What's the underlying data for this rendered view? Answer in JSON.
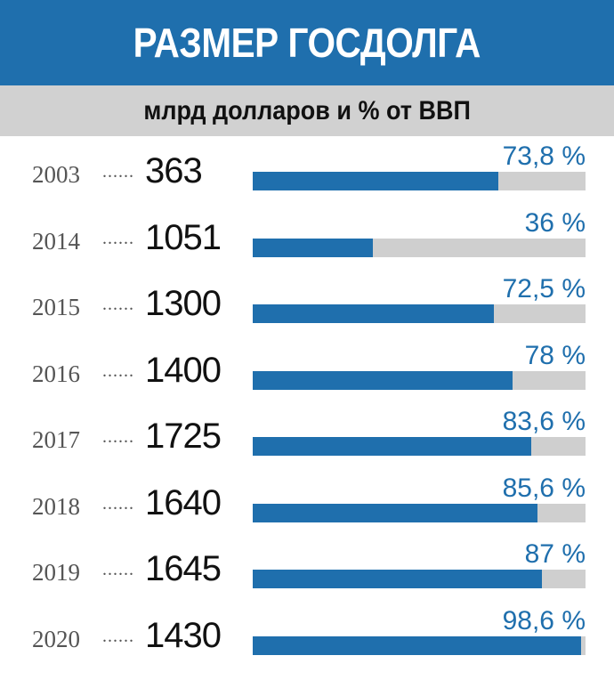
{
  "header": {
    "title": "РАЗМЕР ГОСДОЛГА",
    "subtitle": "млрд долларов и % от ВВП"
  },
  "colors": {
    "accent": "#1f6fad",
    "track": "#cfcfcf",
    "subtitle_bg": "#d1d1d1"
  },
  "chart_data": {
    "type": "bar",
    "title": "РАЗМЕР ГОСДОЛГА",
    "subtitle": "млрд долларов и % от ВВП",
    "categories": [
      "2003",
      "2014",
      "2015",
      "2016",
      "2017",
      "2018",
      "2019",
      "2020"
    ],
    "dots": "......",
    "amounts": [
      "363",
      "1051",
      "1300",
      "1400",
      "1725",
      "1640",
      "1645",
      "1430"
    ],
    "values": [
      73.8,
      36,
      72.5,
      78,
      83.6,
      85.6,
      87,
      98.6
    ],
    "value_labels": [
      "73,8 %",
      "36 %",
      "72,5 %",
      "78 %",
      "83,6 %",
      "85,6 %",
      "87 %",
      "98,6 %"
    ],
    "xlim": [
      0,
      100
    ]
  }
}
